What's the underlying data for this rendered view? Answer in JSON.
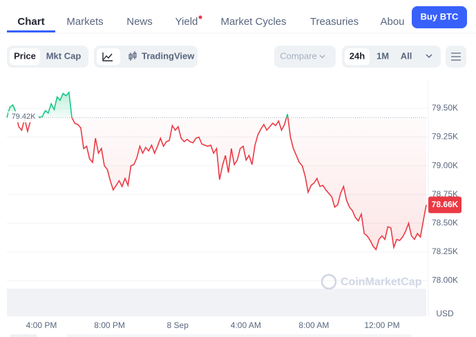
{
  "nav": {
    "tabs": [
      "Chart",
      "Markets",
      "News",
      "Yield",
      "Market Cycles",
      "Treasuries",
      "Abou"
    ]
  },
  "buy_button": "Buy BTC",
  "toolbar": {
    "metric": [
      "Price",
      "Mkt Cap"
    ],
    "trading_view": "TradingView",
    "compare": "Compare",
    "ranges": [
      "24h",
      "1M",
      "All"
    ]
  },
  "chart_data": {
    "type": "line",
    "values": [
      79.42,
      79.51,
      79.53,
      79.47,
      79.34,
      79.31,
      79.41,
      79.3,
      79.39,
      79.43,
      79.45,
      79.42,
      79.43,
      79.48,
      79.46,
      79.54,
      79.49,
      79.6,
      79.57,
      79.63,
      79.61,
      79.64,
      79.42,
      79.37,
      79.36,
      79.33,
      79.15,
      79.17,
      79.06,
      79.03,
      79.24,
      79.11,
      79.15,
      79.0,
      78.97,
      78.87,
      78.79,
      78.83,
      78.87,
      78.82,
      78.89,
      78.83,
      79.0,
      79.01,
      79.07,
      79.17,
      79.11,
      79.16,
      79.13,
      79.18,
      79.11,
      79.17,
      79.24,
      79.17,
      79.21,
      79.22,
      79.35,
      79.31,
      79.34,
      79.24,
      79.21,
      79.23,
      79.21,
      79.2,
      79.24,
      79.25,
      79.19,
      79.18,
      79.17,
      79.18,
      79.11,
      79.15,
      78.88,
      79.0,
      79.09,
      78.94,
      79.15,
      79.01,
      79.05,
      79.15,
      79.17,
      79.05,
      79.09,
      79.01,
      79.18,
      79.27,
      79.32,
      79.36,
      79.31,
      79.34,
      79.37,
      79.35,
      79.39,
      79.31,
      79.36,
      79.45,
      79.25,
      79.15,
      79.09,
      79.03,
      79.0,
      78.91,
      78.77,
      78.83,
      78.85,
      78.89,
      78.82,
      78.83,
      78.79,
      78.76,
      78.73,
      78.64,
      78.66,
      78.76,
      78.82,
      78.7,
      78.64,
      78.61,
      78.55,
      78.52,
      78.58,
      78.41,
      78.39,
      78.35,
      78.3,
      78.27,
      78.36,
      78.39,
      78.36,
      78.47,
      78.46,
      78.29,
      78.36,
      78.35,
      78.38,
      78.43,
      78.5,
      78.39,
      78.36,
      78.41,
      78.38,
      78.52,
      78.66
    ],
    "up_color": "#16c784",
    "down_color": "#ea3943",
    "reference": {
      "value": 79.42,
      "label": "79.42K"
    },
    "current_price": {
      "value": 78.66,
      "label": "78.66K"
    },
    "ylim": [
      77.69,
      79.74
    ],
    "yticks": [
      {
        "value": 79.5,
        "label": "79.50K"
      },
      {
        "value": 79.25,
        "label": "79.25K"
      },
      {
        "value": 79.0,
        "label": "79.00K"
      },
      {
        "value": 78.75,
        "label": "78.75K"
      },
      {
        "value": 78.5,
        "label": "78.50K"
      },
      {
        "value": 78.25,
        "label": "78.25K"
      },
      {
        "value": 78.0,
        "label": "78.00K"
      }
    ],
    "time_labels": [
      "4:00 PM",
      "8:00 PM",
      "8 Sep",
      "4:00 AM",
      "8:00 AM",
      "12:00 PM"
    ],
    "currency": "USD",
    "watermark": "CoinMarketCap",
    "grid": true
  }
}
